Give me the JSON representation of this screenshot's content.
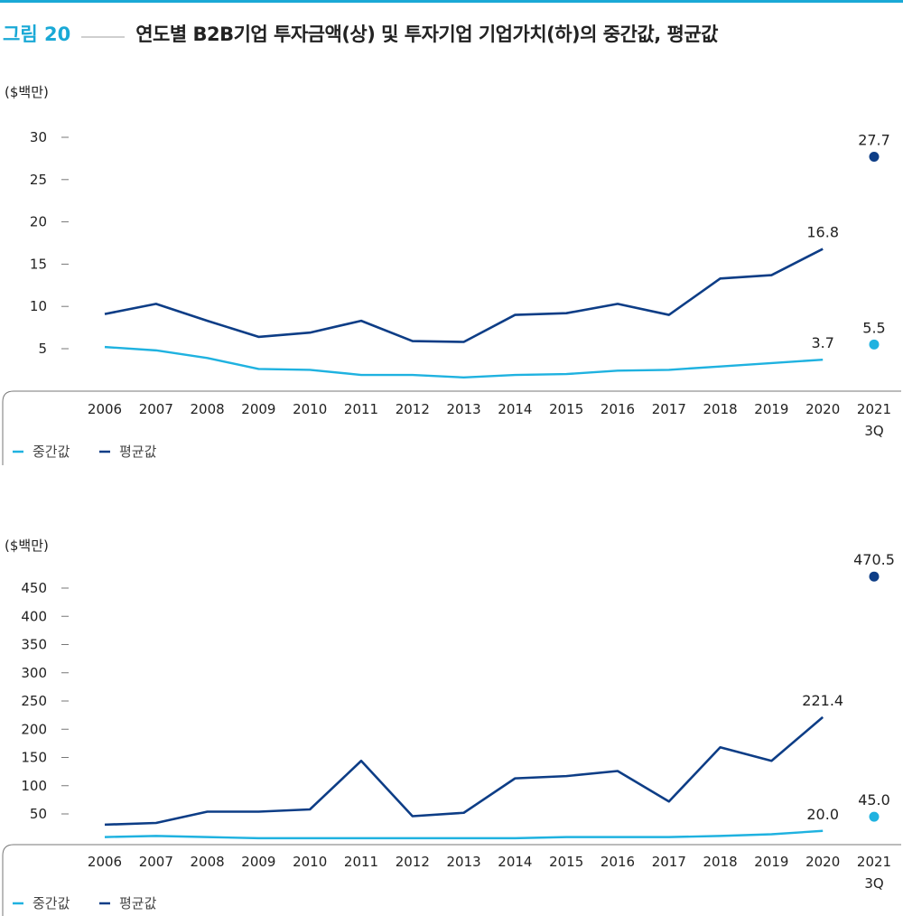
{
  "header": {
    "figure_label": "그림 20",
    "title": "연도별 B2B기업 투자금액(상) 및 투자기업 기업가치(하)의 중간값, 평균값"
  },
  "colors": {
    "accent": "#1aa9d6",
    "median": "#1fb2e0",
    "mean": "#0d3d86",
    "axis": "#777777",
    "text": "#222222"
  },
  "chart_data": [
    {
      "type": "line",
      "unit_label": "($백만)",
      "categories": [
        "2006",
        "2007",
        "2008",
        "2009",
        "2010",
        "2011",
        "2012",
        "2013",
        "2014",
        "2015",
        "2016",
        "2017",
        "2018",
        "2019",
        "2020",
        "2021"
      ],
      "category_sublabels": {
        "2021": "3Q"
      },
      "yticks": [
        "30",
        "25",
        "20",
        "15",
        "10",
        "5"
      ],
      "yaxis": [
        0,
        30
      ],
      "series": [
        {
          "name": "중간값",
          "values": [
            5.2,
            4.8,
            3.9,
            2.6,
            2.5,
            1.9,
            1.9,
            1.6,
            1.9,
            2.0,
            2.4,
            2.5,
            2.9,
            3.3,
            3.7,
            5.5
          ]
        },
        {
          "name": "평균값",
          "values": [
            9.1,
            10.3,
            8.3,
            6.4,
            6.9,
            8.3,
            5.9,
            5.8,
            9.0,
            9.2,
            10.3,
            9.0,
            13.3,
            13.7,
            16.8,
            27.7
          ]
        }
      ],
      "labels": [
        {
          "series": "평균값",
          "category": "2020",
          "text": "16.8"
        },
        {
          "series": "중간값",
          "category": "2020",
          "text": "3.7"
        },
        {
          "series": "평균값",
          "category": "2021",
          "text": "27.7"
        },
        {
          "series": "중간값",
          "category": "2021",
          "text": "5.5"
        }
      ],
      "legend": [
        "중간값",
        "평균값"
      ],
      "legend_position": "bottom-left"
    },
    {
      "type": "line",
      "unit_label": "($백만)",
      "categories": [
        "2006",
        "2007",
        "2008",
        "2009",
        "2010",
        "2011",
        "2012",
        "2013",
        "2014",
        "2015",
        "2016",
        "2017",
        "2018",
        "2019",
        "2020",
        "2021"
      ],
      "category_sublabels": {
        "2021": "3Q"
      },
      "yticks": [
        "450",
        "400",
        "350",
        "300",
        "250",
        "200",
        "150",
        "100",
        "50"
      ],
      "yaxis": [
        0,
        450
      ],
      "series": [
        {
          "name": "중간값",
          "values": [
            9,
            11,
            9,
            7,
            7,
            7,
            7,
            7,
            7,
            9,
            9,
            9,
            11,
            14,
            20.0,
            45.0
          ]
        },
        {
          "name": "평균값",
          "values": [
            31,
            34,
            54,
            54,
            58,
            144,
            46,
            52,
            113,
            117,
            126,
            72,
            168,
            144,
            221.4,
            470.5
          ]
        }
      ],
      "labels": [
        {
          "series": "평균값",
          "category": "2020",
          "text": "221.4"
        },
        {
          "series": "중간값",
          "category": "2020",
          "text": "20.0"
        },
        {
          "series": "평균값",
          "category": "2021",
          "text": "470.5"
        },
        {
          "series": "중간값",
          "category": "2021",
          "text": "45.0"
        }
      ],
      "legend": [
        "중간값",
        "평균값"
      ],
      "legend_position": "bottom-left"
    }
  ]
}
